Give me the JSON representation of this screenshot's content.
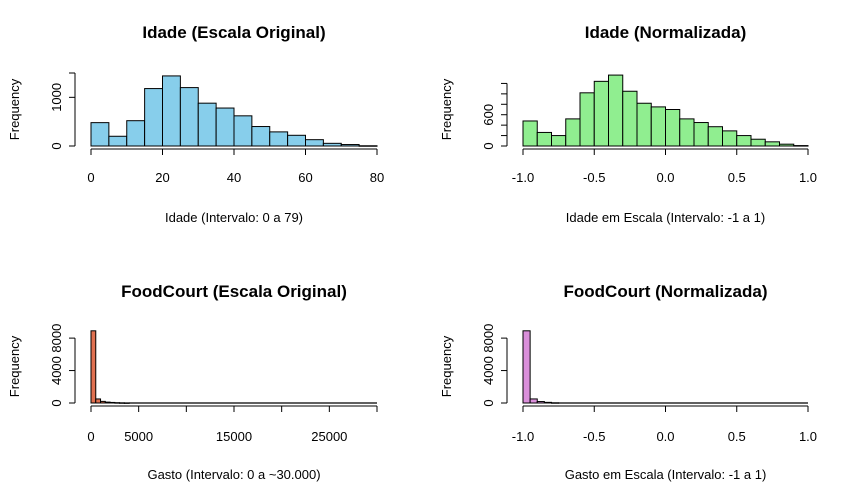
{
  "chart_data": [
    {
      "type": "histogram",
      "title": "Idade (Escala Original)",
      "xlabel": "Idade (Intervalo: 0 a 79)",
      "ylabel": "Frequency",
      "fill": "#87CEEB",
      "xlim": [
        0,
        80
      ],
      "ylim": [
        0,
        1500
      ],
      "x_ticks": [
        0,
        20,
        40,
        60,
        80
      ],
      "y_ticks": [
        0,
        1000
      ],
      "bins": [
        [
          0,
          5
        ],
        [
          5,
          10
        ],
        [
          10,
          15
        ],
        [
          15,
          20
        ],
        [
          20,
          25
        ],
        [
          25,
          30
        ],
        [
          30,
          35
        ],
        [
          35,
          40
        ],
        [
          40,
          45
        ],
        [
          45,
          50
        ],
        [
          50,
          55
        ],
        [
          55,
          60
        ],
        [
          60,
          65
        ],
        [
          65,
          70
        ],
        [
          70,
          75
        ],
        [
          75,
          80
        ]
      ],
      "counts": [
        480,
        200,
        520,
        1180,
        1440,
        1200,
        880,
        780,
        620,
        400,
        290,
        220,
        130,
        55,
        30,
        5
      ]
    },
    {
      "type": "histogram",
      "title": "Idade (Normalizada)",
      "xlabel": "Idade em Escala (Intervalo: -1 a 1)",
      "ylabel": "Frequency",
      "fill": "#90EE90",
      "xlim": [
        -1.0,
        1.0
      ],
      "ylim": [
        0,
        1400
      ],
      "x_ticks": [
        -1.0,
        -0.5,
        0.0,
        0.5,
        1.0
      ],
      "x_tick_labels": [
        "-1.0",
        "-0.5",
        "0.0",
        "0.5",
        "1.0"
      ],
      "y_ticks": [
        0,
        600
      ],
      "y_tick_labels": [
        "0",
        "600"
      ],
      "y_minor_ticks": [
        200,
        400,
        800,
        1000,
        1200
      ],
      "bins": [
        [
          -1.0,
          -0.9
        ],
        [
          -0.9,
          -0.8
        ],
        [
          -0.8,
          -0.7
        ],
        [
          -0.7,
          -0.6
        ],
        [
          -0.6,
          -0.5
        ],
        [
          -0.5,
          -0.4
        ],
        [
          -0.4,
          -0.3
        ],
        [
          -0.3,
          -0.2
        ],
        [
          -0.2,
          -0.1
        ],
        [
          -0.1,
          0.0
        ],
        [
          0.0,
          0.1
        ],
        [
          0.1,
          0.2
        ],
        [
          0.2,
          0.3
        ],
        [
          0.3,
          0.4
        ],
        [
          0.4,
          0.5
        ],
        [
          0.5,
          0.6
        ],
        [
          0.6,
          0.7
        ],
        [
          0.7,
          0.8
        ],
        [
          0.8,
          0.9
        ],
        [
          0.9,
          1.0
        ]
      ],
      "counts": [
        480,
        260,
        200,
        520,
        1020,
        1240,
        1360,
        1050,
        820,
        750,
        700,
        520,
        450,
        370,
        290,
        200,
        130,
        80,
        35,
        8
      ]
    },
    {
      "type": "histogram",
      "title": "FoodCourt (Escala Original)",
      "xlabel": "Gasto (Intervalo: 0 a ~30.000)",
      "ylabel": "Frequency",
      "fill": "#E07050",
      "xlim": [
        0,
        30000
      ],
      "ylim": [
        0,
        9000
      ],
      "x_ticks": [
        0,
        5000,
        15000,
        25000
      ],
      "x_tick_labels": [
        "0",
        "5000",
        "15000",
        "25000"
      ],
      "x_minor_ticks": [
        10000,
        20000,
        30000
      ],
      "y_ticks": [
        0,
        4000,
        8000
      ],
      "bins": [
        [
          0,
          500
        ],
        [
          500,
          1000
        ],
        [
          1000,
          1500
        ],
        [
          1500,
          2000
        ],
        [
          2000,
          2500
        ],
        [
          2500,
          3000
        ],
        [
          3000,
          3500
        ],
        [
          3500,
          4000
        ]
      ],
      "counts": [
        8900,
        500,
        200,
        110,
        70,
        40,
        25,
        15
      ],
      "tail_counts": 3
    },
    {
      "type": "histogram",
      "title": "FoodCourt (Normalizada)",
      "xlabel": "Gasto em Escala (Intervalo: -1 a 1)",
      "ylabel": "Frequency",
      "fill": "#DA8FDA",
      "xlim": [
        -1.0,
        1.0
      ],
      "ylim": [
        0,
        9000
      ],
      "x_ticks": [
        -1.0,
        -0.5,
        0.0,
        0.5,
        1.0
      ],
      "x_tick_labels": [
        "-1.0",
        "-0.5",
        "0.0",
        "0.5",
        "1.0"
      ],
      "y_ticks": [
        0,
        4000,
        8000
      ],
      "bins": [
        [
          -1.0,
          -0.95
        ],
        [
          -0.95,
          -0.9
        ],
        [
          -0.9,
          -0.85
        ],
        [
          -0.85,
          -0.8
        ],
        [
          -0.8,
          -0.75
        ]
      ],
      "counts": [
        8900,
        500,
        180,
        80,
        30
      ],
      "tail_counts": 3
    }
  ]
}
